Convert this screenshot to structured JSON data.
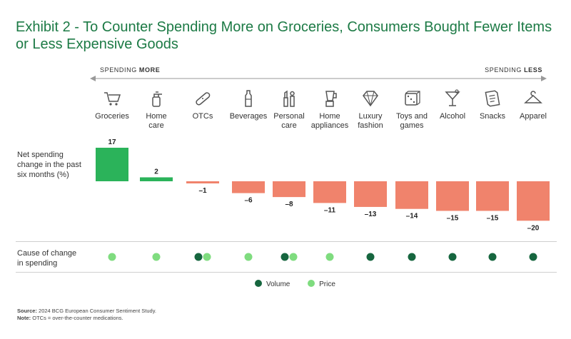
{
  "title_line1": "Exhibit 2 - To Counter Spending More on Groceries, Consumers Bought Fewer Items",
  "title_line2": "or Less Expensive Goods",
  "direction": {
    "left_prefix": "SPENDING ",
    "left_strong": "MORE",
    "right_prefix": "SPENDING ",
    "right_strong": "LESS"
  },
  "row_labels": {
    "net_line1": "Net spending",
    "net_line2": "change in the past",
    "net_line3": "six months (%)",
    "cause_line1": "Cause of change",
    "cause_line2": "in spending"
  },
  "legend": {
    "volume": "Volume",
    "price": "Price"
  },
  "footer": {
    "source_label": "Source:",
    "source_text": " 2024 BCG European Consumer Sentiment Study.",
    "note_label": "Note:",
    "note_text": " OTCs = over-the-counter medications."
  },
  "colors": {
    "title": "#1c7a45",
    "positive": "#2bb35a",
    "negative": "#f0836c",
    "volume": "#16663f",
    "price": "#7fdc7f"
  },
  "chart_data": {
    "type": "bar",
    "categories": [
      [
        "Groceries"
      ],
      [
        "Home",
        "care"
      ],
      [
        "OTCs"
      ],
      [
        "Beverages"
      ],
      [
        "Personal",
        "care"
      ],
      [
        "Home",
        "appliances"
      ],
      [
        "Luxury",
        "fashion"
      ],
      [
        "Toys and",
        "games"
      ],
      [
        "Alcohol"
      ],
      [
        "Snacks"
      ],
      [
        "Apparel"
      ]
    ],
    "icons": [
      "cart-icon",
      "spray-bottle-icon",
      "bandage-icon",
      "bottle-icon",
      "cosmetics-icon",
      "blender-icon",
      "diamond-icon",
      "dice-icon",
      "cocktail-icon",
      "receipt-icon",
      "hanger-icon"
    ],
    "values": [
      17,
      2,
      -1,
      -6,
      -8,
      -11,
      -13,
      -14,
      -15,
      -15,
      -20
    ],
    "value_labels": [
      "17",
      "2",
      "–1",
      "–6",
      "–8",
      "–11",
      "–13",
      "–14",
      "–15",
      "–15",
      "–20"
    ],
    "causes": [
      [
        "price"
      ],
      [
        "price"
      ],
      [
        "volume",
        "price"
      ],
      [
        "price"
      ],
      [
        "volume",
        "price"
      ],
      [
        "price"
      ],
      [
        "volume"
      ],
      [
        "volume"
      ],
      [
        "volume"
      ],
      [
        "volume"
      ],
      [
        "volume"
      ]
    ],
    "ylabel": "Net spending change in the past six months (%)"
  }
}
